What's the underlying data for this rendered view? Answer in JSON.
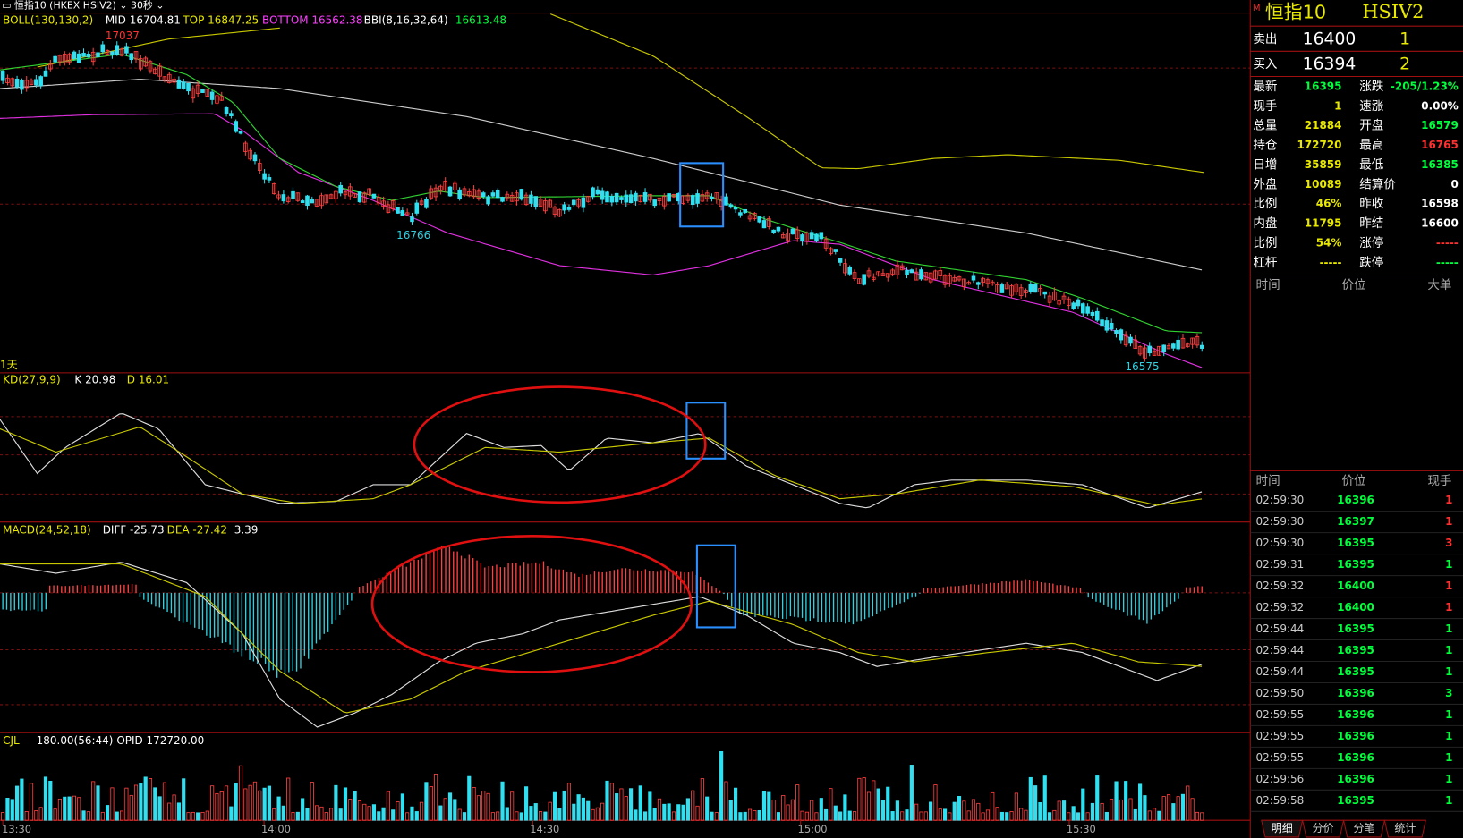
{
  "top_bar": {
    "symbol": "恒指10",
    "code": "(HKEX HSIV2)",
    "interval": "30秒"
  },
  "main_panel": {
    "indicator": "BOLL(130,130,2)",
    "mid": "MID 16704.81",
    "top": "TOP 16847.25",
    "bottom": "BOTTOM 16562.38",
    "bbi": "BBI(8,16,32,64)",
    "bbi_value": "16613.48",
    "high_label": "17037",
    "low_label_1": "16766",
    "low_label_2": "16575",
    "period": "1天"
  },
  "kd_panel": {
    "indicator": "KD(27,9,9)",
    "k": "K 20.98",
    "d": "D 16.01"
  },
  "macd_panel": {
    "indicator": "MACD(24,52,18)",
    "diff": "DIFF -25.73",
    "dea": "DEA -27.42",
    "macd": "3.39"
  },
  "cjl_panel": {
    "indicator": "CJL",
    "value": "180.00(56:44)",
    "opid": "OPID 172720.00"
  },
  "time_axis": [
    "13:30",
    "14:00",
    "14:30",
    "15:00",
    "15:30"
  ],
  "quote": {
    "name": "恒指10",
    "code": "HSIV2",
    "ask": {
      "label": "卖出",
      "price": "16400",
      "qty": "1"
    },
    "bid": {
      "label": "买入",
      "price": "16394",
      "qty": "2"
    },
    "fields": [
      [
        {
          "label": "最新",
          "value": "16395",
          "color": "#00ff3c"
        },
        {
          "label": "涨跌",
          "value": "-205/1.23%",
          "color": "#00ff3c"
        }
      ],
      [
        {
          "label": "现手",
          "value": "1",
          "color": "#e8e800"
        },
        {
          "label": "速涨",
          "value": "0.00%",
          "color": "#ffffff"
        }
      ],
      [
        {
          "label": "总量",
          "value": "21884",
          "color": "#e8e800"
        },
        {
          "label": "开盘",
          "value": "16579",
          "color": "#00ff3c"
        }
      ],
      [
        {
          "label": "持仓",
          "value": "172720",
          "color": "#e8e800"
        },
        {
          "label": "最高",
          "value": "16765",
          "color": "#ff3030"
        }
      ],
      [
        {
          "label": "日增",
          "value": "35859",
          "color": "#e8e800"
        },
        {
          "label": "最低",
          "value": "16385",
          "color": "#00ff3c"
        }
      ],
      [
        {
          "label": "外盘",
          "value": "10089",
          "color": "#e8e800"
        },
        {
          "label": "结算价",
          "value": "0",
          "color": "#ffffff"
        }
      ],
      [
        {
          "label": "比例",
          "value": "46%",
          "color": "#e8e800"
        },
        {
          "label": "昨收",
          "value": "16598",
          "color": "#ffffff"
        }
      ],
      [
        {
          "label": "内盘",
          "value": "11795",
          "color": "#e8e800"
        },
        {
          "label": "昨结",
          "value": "16600",
          "color": "#ffffff"
        }
      ],
      [
        {
          "label": "比例",
          "value": "54%",
          "color": "#e8e800"
        },
        {
          "label": "涨停",
          "value": "-----",
          "color": "#ff3030"
        }
      ],
      [
        {
          "label": "杠杆",
          "value": "-----",
          "color": "#e8e800"
        },
        {
          "label": "跌停",
          "value": "-----",
          "color": "#00ff3c"
        }
      ]
    ]
  },
  "big_orders": {
    "headers": [
      "时间",
      "价位",
      "大单"
    ]
  },
  "trades": {
    "headers": [
      "时间",
      "价位",
      "现手"
    ],
    "rows": [
      {
        "time": "02:59:30",
        "price": "16396",
        "qty": "1",
        "color": "#ff3030"
      },
      {
        "time": "02:59:30",
        "price": "16397",
        "qty": "1",
        "color": "#ff3030"
      },
      {
        "time": "02:59:30",
        "price": "16395",
        "qty": "3",
        "color": "#ff3030"
      },
      {
        "time": "02:59:31",
        "price": "16395",
        "qty": "1",
        "color": "#00ff3c"
      },
      {
        "time": "02:59:32",
        "price": "16400",
        "qty": "1",
        "color": "#ff3030"
      },
      {
        "time": "02:59:32",
        "price": "16400",
        "qty": "1",
        "color": "#ff3030"
      },
      {
        "time": "02:59:44",
        "price": "16395",
        "qty": "1",
        "color": "#00ff3c"
      },
      {
        "time": "02:59:44",
        "price": "16395",
        "qty": "1",
        "color": "#00ff3c"
      },
      {
        "time": "02:59:44",
        "price": "16395",
        "qty": "1",
        "color": "#00ff3c"
      },
      {
        "time": "02:59:50",
        "price": "16396",
        "qty": "3",
        "color": "#00ff3c"
      },
      {
        "time": "02:59:55",
        "price": "16396",
        "qty": "1",
        "color": "#00ff3c"
      },
      {
        "time": "02:59:55",
        "price": "16396",
        "qty": "1",
        "color": "#00ff3c"
      },
      {
        "time": "02:59:55",
        "price": "16396",
        "qty": "1",
        "color": "#00ff3c"
      },
      {
        "time": "02:59:56",
        "price": "16396",
        "qty": "1",
        "color": "#00ff3c"
      },
      {
        "time": "02:59:58",
        "price": "16395",
        "qty": "1",
        "color": "#00ff3c"
      }
    ]
  },
  "tabs": [
    "明细",
    "分价",
    "分笔",
    "统计"
  ]
}
